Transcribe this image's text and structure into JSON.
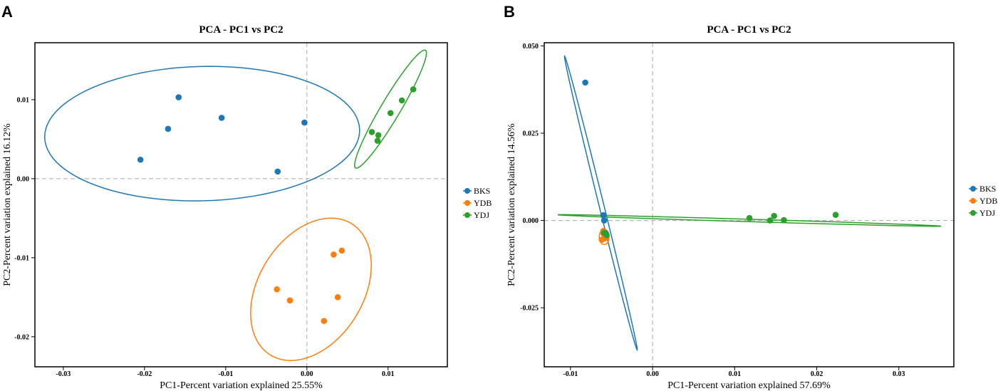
{
  "chart_data": [
    {
      "type": "scatter",
      "panel_label": "A",
      "title": "PCA - PC1 vs PC2",
      "xlabel": "PC1-Percent variation explained 25.55%",
      "ylabel": "PC2-Percent variation explained 16.12%",
      "xlim": [
        -0.0335,
        0.0173
      ],
      "ylim": [
        -0.0238,
        0.0172
      ],
      "xticks": [
        -0.03,
        -0.02,
        -0.01,
        0.0,
        0.01
      ],
      "xtick_labels": [
        "-0.03",
        "-0.02",
        "-0.01",
        "0.00",
        "0.01"
      ],
      "yticks": [
        -0.02,
        -0.01,
        0.0,
        0.01
      ],
      "ytick_labels": [
        "-0.02",
        "-0.01",
        "0.00",
        "0.01"
      ],
      "legend_position": "right",
      "series": [
        {
          "name": "BKS",
          "color": "#1f77b4",
          "points": [
            [
              -0.0205,
              0.0024
            ],
            [
              -0.0171,
              0.0063
            ],
            [
              -0.0158,
              0.0103
            ],
            [
              -0.0105,
              0.0077
            ],
            [
              -0.0036,
              0.0009
            ],
            [
              -0.0003,
              0.0071
            ]
          ],
          "ellipse": {
            "cx": -0.0129,
            "cy": 0.0057,
            "rx": 0.0194,
            "ry": 0.0085,
            "angle_deg": 1.5
          }
        },
        {
          "name": "YDB",
          "color": "#ff7f0e",
          "points": [
            [
              -0.0037,
              -0.014
            ],
            [
              -0.0021,
              -0.0154
            ],
            [
              0.0021,
              -0.018
            ],
            [
              0.0033,
              -0.0096
            ],
            [
              0.0038,
              -0.015
            ],
            [
              0.0043,
              -0.0091
            ]
          ],
          "ellipse": {
            "cx": 0.0005,
            "cy": -0.014,
            "rx": 0.0097,
            "ry": 0.0065,
            "angle_deg": 60
          }
        },
        {
          "name": "YDJ",
          "color": "#2ca02c",
          "points": [
            [
              0.008,
              0.0059
            ],
            [
              0.0087,
              0.0048
            ],
            [
              0.0088,
              0.0055
            ],
            [
              0.0103,
              0.0083
            ],
            [
              0.0117,
              0.0099
            ],
            [
              0.0131,
              0.0113
            ]
          ],
          "ellipse": {
            "cx": 0.0103,
            "cy": 0.0088,
            "rx": 0.0086,
            "ry": 0.0012,
            "angle_deg": 60
          }
        }
      ]
    },
    {
      "type": "scatter",
      "panel_label": "B",
      "title": "PCA - PC1 vs PC2",
      "xlabel": "PC1-Percent variation explained 57.69%",
      "ylabel": "PC2-Percent variation explained 14.56%",
      "xlim": [
        -0.0132,
        0.0367
      ],
      "ylim": [
        -0.0419,
        0.0509
      ],
      "xticks": [
        -0.01,
        0.0,
        0.01,
        0.02,
        0.03
      ],
      "xtick_labels": [
        "-0.01",
        "0.00",
        "0.01",
        "0.02",
        "0.03"
      ],
      "yticks": [
        -0.025,
        0.0,
        0.025,
        0.05
      ],
      "ytick_labels": [
        "-0.025",
        "0.000",
        "0.025",
        "0.050"
      ],
      "legend_position": "right",
      "series": [
        {
          "name": "BKS",
          "color": "#1f77b4",
          "points": [
            [
              -0.0082,
              0.0395
            ],
            [
              -0.006,
              0.0015
            ],
            [
              -0.0059,
              0.0
            ],
            [
              -0.006,
              -0.003
            ],
            [
              -0.0058,
              -0.0043
            ],
            [
              -0.0057,
              -0.0037
            ]
          ],
          "ellipse": {
            "cx": -0.0063,
            "cy": 0.005,
            "rx": 0.0423,
            "ry": 0.0003,
            "angle_deg": -84
          }
        },
        {
          "name": "YDB",
          "color": "#ff7f0e",
          "points": [
            [
              -0.0062,
              -0.0055
            ],
            [
              -0.006,
              -0.0038
            ],
            [
              -0.0059,
              -0.0052
            ],
            [
              -0.0058,
              -0.0045
            ],
            [
              -0.0057,
              -0.005
            ],
            [
              -0.006,
              -0.003
            ]
          ],
          "ellipse": {
            "cx": -0.0059,
            "cy": -0.0047,
            "rx": 0.0006,
            "ry": 0.0022,
            "angle_deg": 0
          }
        },
        {
          "name": "YDJ",
          "color": "#2ca02c",
          "points": [
            [
              -0.0059,
              -0.0035
            ],
            [
              -0.0056,
              -0.0042
            ],
            [
              0.0118,
              0.0007
            ],
            [
              0.0143,
              0.0
            ],
            [
              0.0148,
              0.0013
            ],
            [
              0.016,
              0.0001
            ],
            [
              0.0223,
              0.0016
            ]
          ],
          "ellipse": {
            "cx": 0.0118,
            "cy": 0.0,
            "rx": 0.0234,
            "ry": 0.00035,
            "angle_deg": -4
          }
        }
      ]
    }
  ]
}
